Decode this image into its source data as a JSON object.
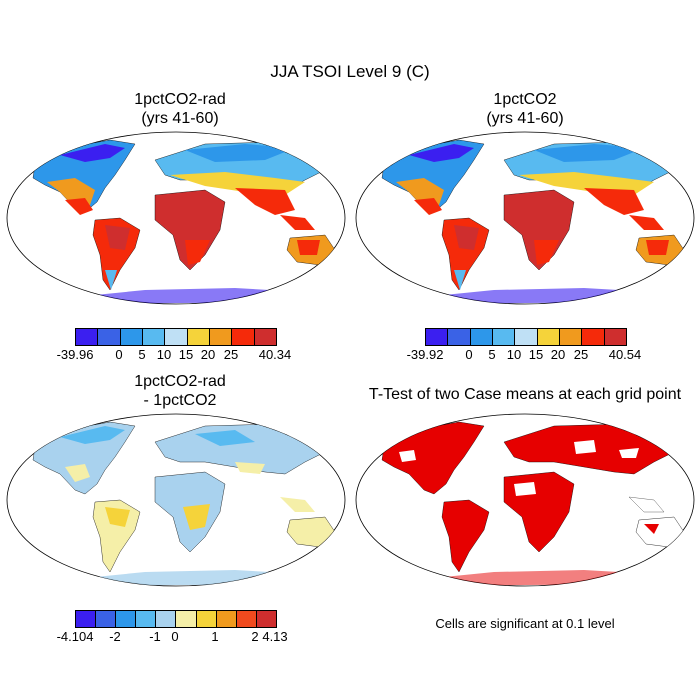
{
  "title": "JJA TSOI Level 9 (C)",
  "panels": [
    {
      "id": "rad",
      "title_lines": [
        "1pctCO2-rad",
        "(yrs 41-60)"
      ],
      "legend": [
        "-39.96",
        "0",
        "5",
        "10",
        "15",
        "20",
        "25",
        "40.34"
      ]
    },
    {
      "id": "co2",
      "title_lines": [
        "1pctCO2",
        "(yrs 41-60)"
      ],
      "legend": [
        "-39.92",
        "0",
        "5",
        "10",
        "15",
        "20",
        "25",
        "40.54"
      ]
    },
    {
      "id": "diff",
      "title_lines": [
        "1pctCO2-rad",
        "- 1pctCO2"
      ],
      "legend": [
        "-4.104",
        "-2",
        "-1",
        "0",
        "1",
        "2",
        "4.13"
      ]
    },
    {
      "id": "ttest",
      "title_lines": [
        "T-Test of two Case means at each grid point"
      ],
      "note": "Cells are significant at 0.1 level"
    }
  ],
  "colors": {
    "abs_scale": [
      "#3b1ff0",
      "#3a62e6",
      "#2d97ea",
      "#58baf0",
      "#bfe0f5",
      "#f5d33a",
      "#f09a1e",
      "#f52a0a",
      "#cf2e2e"
    ],
    "diff_scale": [
      "#3b1ff0",
      "#3a62e6",
      "#2d97ea",
      "#58baf0",
      "#a9d2ee",
      "#f5efa8",
      "#f5d33a",
      "#f09a1e",
      "#f04a1e",
      "#cf2e2e"
    ],
    "significant": "#e60000"
  }
}
